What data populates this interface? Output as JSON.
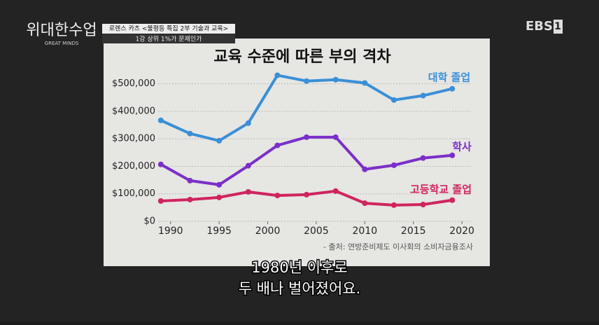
{
  "broadcast": {
    "logo": "위대한수업",
    "logo_sub": "GREAT MINDS",
    "program": "로렌스 카츠 <불평등 특집 2부 기술과 교육>",
    "episode": "1강 상위 1%가 문제인가",
    "channel": "EBS",
    "channel_num": "1"
  },
  "chart_data": {
    "type": "line",
    "title": "교육 수준에 따른 부의 격차",
    "x": [
      1989,
      1992,
      1995,
      1998,
      2001,
      2004,
      2007,
      2010,
      2013,
      2016,
      2019
    ],
    "series": [
      {
        "name": "대학 졸업",
        "color": "#3a8fd6",
        "values": [
          367000,
          319000,
          293000,
          357000,
          531000,
          510000,
          515000,
          503000,
          441000,
          457000,
          482000
        ]
      },
      {
        "name": "학사",
        "color": "#7b2fc9",
        "values": [
          207000,
          148000,
          133000,
          202000,
          276000,
          306000,
          306000,
          189000,
          204000,
          230000,
          240000
        ]
      },
      {
        "name": "고등학교 졸업",
        "color": "#d0245e",
        "values": [
          74000,
          79000,
          87000,
          107000,
          94000,
          97000,
          110000,
          66000,
          59000,
          61000,
          77000
        ]
      }
    ],
    "xlim": [
      1988,
      2021
    ],
    "xticks": [
      1990,
      1995,
      2000,
      2005,
      2010,
      2015,
      2020
    ],
    "ylim": [
      0,
      550000
    ],
    "yticks": [
      {
        "value": 0,
        "label": "$0"
      },
      {
        "value": 100000,
        "label": "$100,000"
      },
      {
        "value": 200000,
        "label": "$200,000"
      },
      {
        "value": 300000,
        "label": "$300,000"
      },
      {
        "value": 400000,
        "label": "$400,000"
      },
      {
        "value": 500000,
        "label": "$500,000"
      }
    ],
    "grid": true,
    "source": "- 출처: 연방준비제도 이사회의 소비자금융조사"
  },
  "subtitles": [
    "1980년 이후로",
    "두 배나 벌어졌어요."
  ]
}
